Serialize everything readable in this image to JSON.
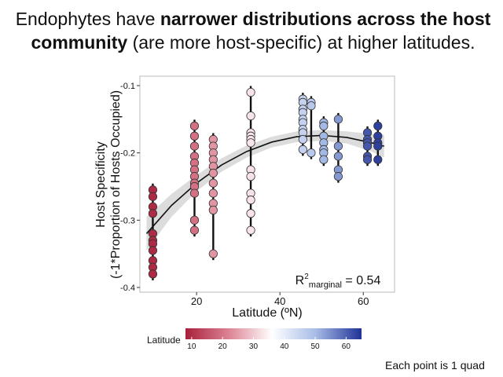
{
  "chart_data": {
    "type": "scatter",
    "title_parts": [
      {
        "text": "Endophytes have ",
        "bold": false
      },
      {
        "text": "narrower distributions across the host",
        "bold": true
      }
    ],
    "title_parts_line2": [
      {
        "text": "community",
        "bold": true
      },
      {
        "text": " (are more host-specific) at higher latitudes.",
        "bold": false
      }
    ],
    "x_label": "Latitude (ºN)",
    "y_label": [
      "Host Specificity",
      "(-1*Proportion of Hosts Occupied)"
    ],
    "annotation": {
      "base": "R",
      "sup": "2",
      "sub": "marginal",
      "text": " = 0.54"
    },
    "footnote": "Each point is 1 quad",
    "legend_title": "Latitude",
    "xlim": [
      6.4,
      67.5
    ],
    "ylim": [
      -0.407,
      -0.086
    ],
    "xticks": [
      20,
      40,
      60
    ],
    "yticks": [
      -0.1,
      -0.2,
      -0.3,
      -0.4
    ],
    "colorbar_lim": [
      8,
      65
    ],
    "colorbar_ticks": [
      10,
      20,
      30,
      40,
      50,
      60
    ],
    "colorscale": [
      {
        "value": 8,
        "color": "#a8203a"
      },
      {
        "value": 22,
        "color": "#dc8394"
      },
      {
        "value": 36,
        "color": "#ffffff"
      },
      {
        "value": 50,
        "color": "#a9bde8"
      },
      {
        "value": 65,
        "color": "#1f3296"
      }
    ],
    "x": [
      9.5,
      9.5,
      9.5,
      9.5,
      9.5,
      9.5,
      9.5,
      9.5,
      9.5,
      9.5,
      9.5,
      19.5,
      19.5,
      19.5,
      19.5,
      19.5,
      19.5,
      19.5,
      19.5,
      19.5,
      19.5,
      19.5,
      19.5,
      24,
      24,
      24,
      24,
      24,
      24,
      24,
      24,
      24,
      24,
      24,
      33,
      33,
      33,
      33,
      33,
      33,
      33,
      33,
      33,
      33,
      33,
      33,
      45.5,
      45.5,
      45.5,
      45.5,
      45.5,
      45.5,
      45.5,
      45.5,
      45.5,
      45.5,
      47.5,
      47.5,
      47.5,
      50.5,
      50.5,
      50.5,
      50.5,
      50.5,
      50.5,
      50.5,
      54,
      54,
      54,
      54,
      54,
      61,
      61,
      61,
      61,
      61,
      61,
      63.5,
      63.5,
      63.5,
      63.5,
      63.5
    ],
    "y": [
      -0.255,
      -0.265,
      -0.28,
      -0.29,
      -0.32,
      -0.33,
      -0.335,
      -0.345,
      -0.36,
      -0.37,
      -0.38,
      -0.16,
      -0.175,
      -0.19,
      -0.205,
      -0.215,
      -0.225,
      -0.235,
      -0.245,
      -0.25,
      -0.26,
      -0.3,
      -0.315,
      -0.18,
      -0.19,
      -0.2,
      -0.21,
      -0.22,
      -0.23,
      -0.245,
      -0.26,
      -0.275,
      -0.285,
      -0.35,
      -0.11,
      -0.145,
      -0.17,
      -0.175,
      -0.18,
      -0.185,
      -0.225,
      -0.235,
      -0.26,
      -0.27,
      -0.29,
      -0.315,
      -0.12,
      -0.125,
      -0.135,
      -0.14,
      -0.15,
      -0.155,
      -0.165,
      -0.17,
      -0.18,
      -0.195,
      -0.125,
      -0.13,
      -0.2,
      -0.155,
      -0.16,
      -0.175,
      -0.185,
      -0.195,
      -0.2,
      -0.21,
      -0.15,
      -0.19,
      -0.205,
      -0.225,
      -0.235,
      -0.17,
      -0.18,
      -0.185,
      -0.19,
      -0.205,
      -0.21,
      -0.16,
      -0.175,
      -0.185,
      -0.19,
      -0.21
    ],
    "fit": {
      "x": [
        8,
        14,
        20,
        26,
        32,
        38,
        44,
        50,
        56,
        62,
        65
      ],
      "y": [
        -0.32,
        -0.278,
        -0.245,
        -0.218,
        -0.198,
        -0.184,
        -0.176,
        -0.174,
        -0.177,
        -0.185,
        -0.19
      ],
      "lower": [
        -0.345,
        -0.295,
        -0.257,
        -0.228,
        -0.207,
        -0.192,
        -0.184,
        -0.182,
        -0.186,
        -0.198,
        -0.207
      ],
      "upper": [
        -0.295,
        -0.261,
        -0.233,
        -0.208,
        -0.189,
        -0.176,
        -0.168,
        -0.166,
        -0.168,
        -0.172,
        -0.173
      ]
    }
  }
}
